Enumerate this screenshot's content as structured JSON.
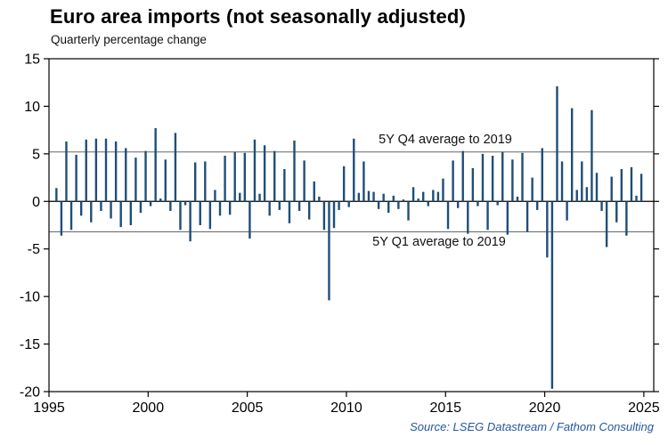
{
  "header": {
    "title": "Euro area imports (not seasonally adjusted)",
    "subtitle": "Quarterly percentage change"
  },
  "footer": {
    "source": "Source: LSEG Datastream / Fathom Consulting"
  },
  "chart_data": {
    "type": "bar",
    "title": "Euro area imports (not seasonally adjusted)",
    "subtitle": "Quarterly percentage change",
    "xlabel": "",
    "ylabel": "Quarterly percentage change",
    "ylim": [
      -20,
      15
    ],
    "ytick_step": 5,
    "yticks": [
      15,
      10,
      5,
      0,
      -5,
      -10,
      -15,
      -20
    ],
    "xlim": [
      1995,
      2025.5
    ],
    "xticks": [
      1995,
      2000,
      2005,
      2010,
      2015,
      2020,
      2025
    ],
    "grid": false,
    "legend": "none",
    "bar_color": "#1f4e79",
    "axis_color": "#000000",
    "ref_line_color": "#666666",
    "source_color": "#2456a4",
    "reference_lines": [
      {
        "label": "5Y Q4 average to 2019",
        "value": 5.2,
        "label_position": "above"
      },
      {
        "label": "5Y Q1 average to 2019",
        "value": -3.2,
        "label_position": "below"
      }
    ],
    "quarters": [
      [
        1995,
        2,
        1.4
      ],
      [
        1995,
        3,
        -3.6
      ],
      [
        1995,
        4,
        6.3
      ],
      [
        1996,
        1,
        -3.0
      ],
      [
        1996,
        2,
        4.9
      ],
      [
        1996,
        3,
        -1.5
      ],
      [
        1996,
        4,
        6.5
      ],
      [
        1997,
        1,
        -2.2
      ],
      [
        1997,
        2,
        6.6
      ],
      [
        1997,
        3,
        -1.0
      ],
      [
        1997,
        4,
        6.6
      ],
      [
        1998,
        1,
        -1.8
      ],
      [
        1998,
        2,
        6.3
      ],
      [
        1998,
        3,
        -2.7
      ],
      [
        1998,
        4,
        5.6
      ],
      [
        1999,
        1,
        -2.5
      ],
      [
        1999,
        2,
        4.6
      ],
      [
        1999,
        3,
        -1.2
      ],
      [
        1999,
        4,
        5.3
      ],
      [
        2000,
        1,
        -0.5
      ],
      [
        2000,
        2,
        7.7
      ],
      [
        2000,
        3,
        0.3
      ],
      [
        2000,
        4,
        4.4
      ],
      [
        2001,
        1,
        -1.0
      ],
      [
        2001,
        2,
        7.2
      ],
      [
        2001,
        3,
        -3.0
      ],
      [
        2001,
        4,
        -0.4
      ],
      [
        2002,
        1,
        -4.2
      ],
      [
        2002,
        2,
        4.1
      ],
      [
        2002,
        3,
        -2.5
      ],
      [
        2002,
        4,
        4.2
      ],
      [
        2003,
        1,
        -2.9
      ],
      [
        2003,
        2,
        1.2
      ],
      [
        2003,
        3,
        -1.5
      ],
      [
        2003,
        4,
        4.8
      ],
      [
        2004,
        1,
        -1.4
      ],
      [
        2004,
        2,
        5.2
      ],
      [
        2004,
        3,
        0.9
      ],
      [
        2004,
        4,
        5.1
      ],
      [
        2005,
        1,
        -3.9
      ],
      [
        2005,
        2,
        6.5
      ],
      [
        2005,
        3,
        0.8
      ],
      [
        2005,
        4,
        5.9
      ],
      [
        2006,
        1,
        -1.5
      ],
      [
        2006,
        2,
        5.3
      ],
      [
        2006,
        3,
        -0.9
      ],
      [
        2006,
        4,
        3.4
      ],
      [
        2007,
        1,
        -2.3
      ],
      [
        2007,
        2,
        6.4
      ],
      [
        2007,
        3,
        -1.0
      ],
      [
        2007,
        4,
        4.3
      ],
      [
        2008,
        1,
        -1.9
      ],
      [
        2008,
        2,
        2.1
      ],
      [
        2008,
        3,
        0.5
      ],
      [
        2008,
        4,
        -3.0
      ],
      [
        2009,
        1,
        -10.4
      ],
      [
        2009,
        2,
        -2.8
      ],
      [
        2009,
        3,
        -0.9
      ],
      [
        2009,
        4,
        3.7
      ],
      [
        2010,
        1,
        -0.6
      ],
      [
        2010,
        2,
        6.6
      ],
      [
        2010,
        3,
        0.9
      ],
      [
        2010,
        4,
        4.2
      ],
      [
        2011,
        1,
        1.1
      ],
      [
        2011,
        2,
        1.0
      ],
      [
        2011,
        3,
        -0.8
      ],
      [
        2011,
        4,
        0.8
      ],
      [
        2012,
        1,
        -1.2
      ],
      [
        2012,
        2,
        0.6
      ],
      [
        2012,
        3,
        -0.8
      ],
      [
        2012,
        4,
        0.2
      ],
      [
        2013,
        1,
        -2.0
      ],
      [
        2013,
        2,
        1.5
      ],
      [
        2013,
        3,
        0.3
      ],
      [
        2013,
        4,
        1.0
      ],
      [
        2014,
        1,
        -0.5
      ],
      [
        2014,
        2,
        1.2
      ],
      [
        2014,
        3,
        1.0
      ],
      [
        2014,
        4,
        2.4
      ],
      [
        2015,
        1,
        -2.9
      ],
      [
        2015,
        2,
        4.3
      ],
      [
        2015,
        3,
        -0.7
      ],
      [
        2015,
        4,
        5.3
      ],
      [
        2016,
        1,
        -3.4
      ],
      [
        2016,
        2,
        3.5
      ],
      [
        2016,
        3,
        -0.5
      ],
      [
        2016,
        4,
        5.0
      ],
      [
        2017,
        1,
        -3.0
      ],
      [
        2017,
        2,
        4.8
      ],
      [
        2017,
        3,
        -0.4
      ],
      [
        2017,
        4,
        5.2
      ],
      [
        2018,
        1,
        -3.5
      ],
      [
        2018,
        2,
        4.4
      ],
      [
        2018,
        3,
        0.5
      ],
      [
        2018,
        4,
        5.1
      ],
      [
        2019,
        1,
        -3.2
      ],
      [
        2019,
        2,
        2.5
      ],
      [
        2019,
        3,
        -0.9
      ],
      [
        2019,
        4,
        5.6
      ],
      [
        2020,
        1,
        -5.9
      ],
      [
        2020,
        2,
        -19.7
      ],
      [
        2020,
        3,
        12.1
      ],
      [
        2020,
        4,
        4.2
      ],
      [
        2021,
        1,
        -2.0
      ],
      [
        2021,
        2,
        9.8
      ],
      [
        2021,
        3,
        1.2
      ],
      [
        2021,
        4,
        4.2
      ],
      [
        2022,
        1,
        1.5
      ],
      [
        2022,
        2,
        9.6
      ],
      [
        2022,
        3,
        3.0
      ],
      [
        2022,
        4,
        -1.0
      ],
      [
        2023,
        1,
        -4.8
      ],
      [
        2023,
        2,
        2.6
      ],
      [
        2023,
        3,
        -2.2
      ],
      [
        2023,
        4,
        3.4
      ],
      [
        2024,
        1,
        -3.6
      ],
      [
        2024,
        2,
        3.6
      ],
      [
        2024,
        3,
        0.6
      ],
      [
        2024,
        4,
        2.9
      ]
    ]
  }
}
